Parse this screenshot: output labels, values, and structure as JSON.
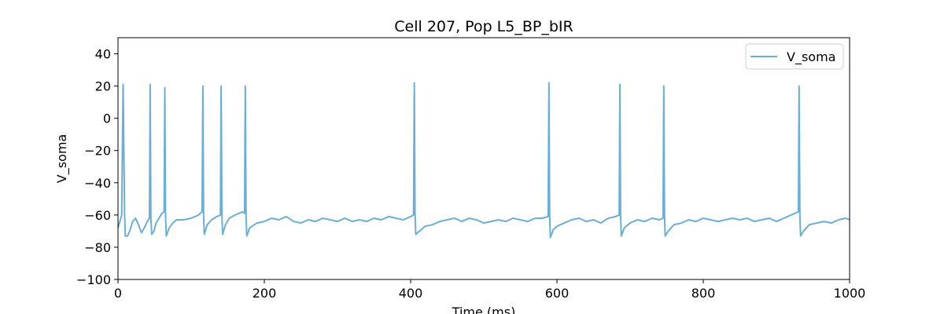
{
  "chart_data": {
    "type": "line",
    "title": "Cell 207, Pop L5_BP_bIR",
    "xlabel": "Time (ms)",
    "ylabel": "V_soma",
    "xlim": [
      0,
      1000
    ],
    "ylim": [
      -100,
      50
    ],
    "xticks": [
      0,
      200,
      400,
      600,
      800,
      1000
    ],
    "yticks": [
      -100,
      -80,
      -60,
      -40,
      -20,
      0,
      20,
      40
    ],
    "grid": false,
    "legend_position": "top-right",
    "series": [
      {
        "name": "V_soma",
        "color": "#6baed6",
        "spike_times": [
          7,
          44,
          64,
          116,
          141,
          174,
          405,
          589,
          686,
          746,
          931
        ],
        "spike_peaks": [
          21,
          21,
          19,
          20,
          20,
          20,
          22,
          22,
          21,
          20,
          20
        ],
        "x": [
          0,
          5,
          7,
          9,
          10,
          13,
          16,
          20,
          24,
          28,
          32,
          36,
          40,
          43,
          44,
          45,
          46,
          49,
          52,
          56,
          60,
          63,
          64,
          65,
          66,
          70,
          75,
          80,
          90,
          100,
          110,
          115,
          116,
          117,
          118,
          122,
          128,
          135,
          140,
          141,
          142,
          143,
          147,
          152,
          160,
          170,
          173,
          174,
          175,
          176,
          180,
          190,
          200,
          210,
          220,
          230,
          240,
          250,
          260,
          270,
          280,
          290,
          300,
          310,
          320,
          330,
          340,
          350,
          360,
          370,
          380,
          390,
          400,
          404,
          405,
          406,
          407,
          412,
          420,
          430,
          440,
          450,
          460,
          470,
          480,
          490,
          500,
          510,
          520,
          530,
          540,
          550,
          560,
          570,
          580,
          588,
          589,
          590,
          591,
          595,
          600,
          610,
          620,
          630,
          640,
          650,
          660,
          670,
          680,
          685,
          686,
          687,
          688,
          692,
          700,
          710,
          720,
          730,
          740,
          745,
          746,
          747,
          748,
          752,
          760,
          770,
          780,
          790,
          800,
          810,
          820,
          830,
          840,
          850,
          860,
          870,
          880,
          890,
          900,
          910,
          920,
          930,
          931,
          932,
          933,
          937,
          945,
          955,
          965,
          975,
          985,
          995,
          1000
        ],
        "y": [
          -68,
          -60,
          21,
          -60,
          -73,
          -73,
          -70,
          -64,
          -62,
          -66,
          -71,
          -68,
          -64,
          -62,
          21,
          -62,
          -72,
          -70,
          -65,
          -62,
          -59,
          -58,
          19,
          -60,
          -73,
          -68,
          -65,
          -63,
          -63,
          -62,
          -60,
          -58,
          20,
          -60,
          -72,
          -66,
          -63,
          -61,
          -60,
          20,
          -60,
          -72,
          -66,
          -62,
          -60,
          -58,
          -59,
          20,
          -60,
          -73,
          -68,
          -65,
          -64,
          -62,
          -63,
          -61,
          -64,
          -65,
          -63,
          -64,
          -62,
          -63,
          -64,
          -62,
          -64,
          -63,
          -64,
          -62,
          -63,
          -61,
          -62,
          -63,
          -61,
          -60,
          22,
          -60,
          -72,
          -70,
          -67,
          -66,
          -64,
          -63,
          -62,
          -64,
          -62,
          -63,
          -65,
          -64,
          -63,
          -64,
          -62,
          -63,
          -64,
          -62,
          -62,
          -61,
          22,
          -60,
          -74,
          -69,
          -67,
          -65,
          -63,
          -62,
          -64,
          -63,
          -65,
          -62,
          -61,
          -60,
          21,
          -60,
          -73,
          -68,
          -65,
          -63,
          -64,
          -62,
          -63,
          -62,
          20,
          -60,
          -73,
          -70,
          -66,
          -65,
          -63,
          -64,
          -62,
          -63,
          -64,
          -63,
          -62,
          -63,
          -62,
          -64,
          -63,
          -62,
          -64,
          -62,
          -60,
          -58,
          20,
          -60,
          -73,
          -70,
          -66,
          -65,
          -64,
          -65,
          -63,
          -62,
          -63
        ]
      }
    ]
  }
}
